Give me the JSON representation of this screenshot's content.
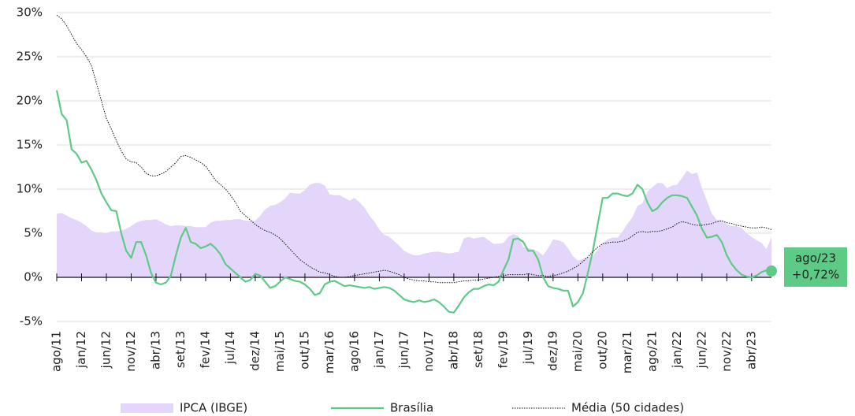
{
  "chart_data": {
    "type": "line",
    "categories": [
      "ago/11",
      null,
      null,
      null,
      null,
      "jan/12",
      null,
      null,
      null,
      null,
      "jun/12",
      null,
      null,
      null,
      null,
      "nov/12",
      null,
      null,
      null,
      null,
      "abr/13",
      null,
      null,
      null,
      null,
      "set/13",
      null,
      null,
      null,
      null,
      "fev/14",
      null,
      null,
      null,
      null,
      "jul/14",
      null,
      null,
      null,
      null,
      "dez/14",
      null,
      null,
      null,
      null,
      "mai/15",
      null,
      null,
      null,
      null,
      "out/15",
      null,
      null,
      null,
      null,
      "mar/16",
      null,
      null,
      null,
      null,
      "ago/16",
      null,
      null,
      null,
      null,
      "jan/17",
      null,
      null,
      null,
      null,
      "jun/17",
      null,
      null,
      null,
      null,
      "nov/17",
      null,
      null,
      null,
      null,
      "abr/18",
      null,
      null,
      null,
      null,
      "set/18",
      null,
      null,
      null,
      null,
      "fev/19",
      null,
      null,
      null,
      null,
      "jul/19",
      null,
      null,
      null,
      null,
      "dez/19",
      null,
      null,
      null,
      null,
      "mai/20",
      null,
      null,
      null,
      null,
      "out/20",
      null,
      null,
      null,
      null,
      "mar/21",
      null,
      null,
      null,
      null,
      "ago/21",
      null,
      null,
      null,
      null,
      "jan/22",
      null,
      null,
      null,
      null,
      "jun/22",
      null,
      null,
      null,
      null,
      "nov/22",
      null,
      null,
      null,
      null,
      "abr/23",
      null,
      null,
      null,
      null
    ],
    "series": [
      {
        "name": "IPCA (IBGE)",
        "kind": "area",
        "color": "#e4d6fa",
        "values": [
          7.2,
          7.3,
          7.0,
          6.7,
          6.5,
          6.2,
          5.8,
          5.3,
          5.1,
          5.1,
          5.0,
          5.2,
          5.2,
          5.3,
          5.5,
          5.8,
          6.2,
          6.4,
          6.5,
          6.5,
          6.6,
          6.3,
          6.0,
          5.8,
          5.9,
          5.9,
          5.8,
          5.8,
          5.7,
          5.7,
          5.7,
          6.2,
          6.4,
          6.4,
          6.5,
          6.5,
          6.6,
          6.6,
          6.4,
          6.4,
          6.4,
          7.0,
          7.7,
          8.1,
          8.2,
          8.5,
          8.9,
          9.6,
          9.5,
          9.5,
          9.9,
          10.5,
          10.7,
          10.7,
          10.4,
          9.4,
          9.3,
          9.3,
          9.0,
          8.7,
          9.0,
          8.5,
          7.9,
          7.0,
          6.3,
          5.4,
          4.8,
          4.6,
          4.1,
          3.6,
          3.0,
          2.7,
          2.5,
          2.5,
          2.7,
          2.8,
          2.9,
          2.9,
          2.8,
          2.7,
          2.8,
          2.9,
          4.4,
          4.6,
          4.4,
          4.5,
          4.6,
          4.2,
          3.8,
          3.8,
          3.9,
          4.6,
          4.9,
          4.7,
          3.4,
          3.3,
          3.2,
          2.9,
          2.5,
          3.3,
          4.3,
          4.2,
          4.0,
          3.3,
          2.4,
          1.9,
          2.1,
          2.3,
          2.4,
          3.1,
          3.9,
          4.3,
          4.5,
          4.5,
          5.2,
          6.1,
          6.8,
          8.1,
          8.4,
          9.7,
          10.2,
          10.7,
          10.7,
          10.1,
          10.4,
          10.5,
          11.3,
          12.1,
          11.7,
          11.9,
          10.1,
          8.7,
          7.2,
          6.5,
          6.5,
          6.0,
          5.8,
          5.8,
          5.6,
          5.0,
          4.6,
          4.2,
          3.9,
          3.2,
          4.6
        ]
      },
      {
        "name": "Brasília",
        "kind": "line",
        "color": "#5dcb86",
        "values": [
          21.2,
          18.5,
          17.8,
          14.5,
          14.0,
          13.0,
          13.2,
          12.2,
          11.0,
          9.5,
          8.5,
          7.6,
          7.5,
          5.0,
          3.0,
          2.2,
          4.0,
          4.0,
          2.5,
          0.5,
          -0.6,
          -0.8,
          -0.6,
          0.2,
          2.5,
          4.5,
          5.6,
          4.0,
          3.8,
          3.3,
          3.5,
          3.8,
          3.3,
          2.6,
          1.5,
          1.0,
          0.5,
          0.0,
          -0.5,
          -0.3,
          0.4,
          0.2,
          -0.5,
          -1.2,
          -1.0,
          -0.5,
          0.0,
          -0.2,
          -0.4,
          -0.5,
          -0.8,
          -1.3,
          -2.0,
          -1.8,
          -0.8,
          -0.5,
          -0.4,
          -0.7,
          -1.0,
          -0.9,
          -1.0,
          -1.1,
          -1.2,
          -1.1,
          -1.3,
          -1.2,
          -1.1,
          -1.2,
          -1.5,
          -2.0,
          -2.5,
          -2.7,
          -2.8,
          -2.6,
          -2.8,
          -2.7,
          -2.5,
          -2.8,
          -3.3,
          -3.9,
          -4.0,
          -3.2,
          -2.3,
          -1.7,
          -1.3,
          -1.3,
          -1.0,
          -0.8,
          -0.9,
          -0.5,
          0.8,
          2.0,
          4.3,
          4.4,
          4.0,
          3.0,
          3.0,
          2.0,
          0.0,
          -1.0,
          -1.2,
          -1.3,
          -1.5,
          -1.5,
          -3.3,
          -2.8,
          -1.8,
          0.5,
          3.0,
          6.0,
          9.0,
          9.0,
          9.5,
          9.5,
          9.3,
          9.2,
          9.5,
          10.5,
          10.0,
          8.5,
          7.5,
          7.8,
          8.5,
          9.0,
          9.3,
          9.3,
          9.2,
          9.0,
          8.0,
          7.0,
          5.5,
          4.5,
          4.6,
          4.8,
          4.0,
          2.5,
          1.5,
          0.8,
          0.3,
          0.1,
          0.0,
          0.2,
          0.6,
          0.8,
          0.72
        ]
      },
      {
        "name": "Média (50 cidades)",
        "kind": "dotted",
        "color": "#111111",
        "values": [
          29.7,
          29.3,
          28.5,
          27.5,
          26.5,
          25.8,
          25.0,
          24.0,
          22.0,
          20.0,
          18.0,
          16.8,
          15.5,
          14.3,
          13.4,
          13.1,
          13.0,
          12.5,
          11.8,
          11.5,
          11.5,
          11.7,
          12.0,
          12.5,
          13.0,
          13.7,
          13.8,
          13.6,
          13.3,
          13.0,
          12.6,
          11.8,
          11.0,
          10.5,
          10.0,
          9.3,
          8.5,
          7.5,
          7.0,
          6.5,
          6.0,
          5.6,
          5.3,
          5.1,
          4.8,
          4.4,
          3.8,
          3.2,
          2.6,
          2.0,
          1.6,
          1.2,
          0.9,
          0.6,
          0.5,
          0.3,
          0.1,
          0.0,
          0.0,
          0.1,
          0.2,
          0.3,
          0.4,
          0.5,
          0.6,
          0.7,
          0.8,
          0.7,
          0.5,
          0.3,
          0.0,
          -0.2,
          -0.3,
          -0.4,
          -0.4,
          -0.5,
          -0.5,
          -0.6,
          -0.6,
          -0.6,
          -0.6,
          -0.5,
          -0.4,
          -0.4,
          -0.3,
          -0.3,
          -0.2,
          -0.1,
          0.0,
          0.1,
          0.2,
          0.3,
          0.3,
          0.3,
          0.3,
          0.4,
          0.3,
          0.2,
          0.2,
          0.1,
          0.2,
          0.3,
          0.5,
          0.7,
          1.0,
          1.3,
          1.8,
          2.3,
          2.9,
          3.4,
          3.8,
          3.9,
          4.0,
          4.0,
          4.1,
          4.3,
          4.7,
          5.1,
          5.2,
          5.1,
          5.2,
          5.2,
          5.3,
          5.5,
          5.7,
          6.1,
          6.3,
          6.2,
          6.0,
          5.9,
          5.9,
          6.0,
          6.1,
          6.3,
          6.4,
          6.2,
          6.1,
          5.9,
          5.8,
          5.7,
          5.6,
          5.6,
          5.7,
          5.6,
          5.4
        ]
      }
    ],
    "ylim": [
      -5,
      30
    ],
    "yticks": [
      {
        "value": -5,
        "label": "-5%"
      },
      {
        "value": 0,
        "label": "0%"
      },
      {
        "value": 5,
        "label": "5%"
      },
      {
        "value": 10,
        "label": "10%"
      },
      {
        "value": 15,
        "label": "15%"
      },
      {
        "value": 20,
        "label": "20%"
      },
      {
        "value": 25,
        "label": "25%"
      },
      {
        "value": 30,
        "label": "30%"
      }
    ],
    "grid": true,
    "legend": "bottom",
    "annotation": {
      "x_label": "ago/23",
      "value": 0.72,
      "label": "+0,72%",
      "color": "#5dcb86"
    }
  }
}
